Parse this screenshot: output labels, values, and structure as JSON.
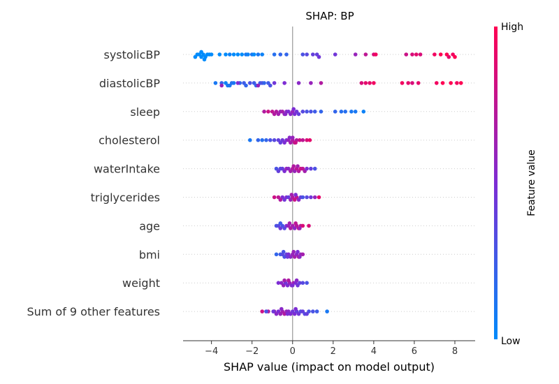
{
  "chart_data": {
    "type": "scatter",
    "subtype": "shap-beeswarm",
    "title": "SHAP: BP",
    "xlabel": "SHAP value (impact on model output)",
    "xlim": [
      -5.4,
      9.0
    ],
    "xticks": [
      -4,
      -2,
      0,
      2,
      4,
      6,
      8
    ],
    "colorbar": {
      "label": "Feature value",
      "high_label": "High",
      "low_label": "Low",
      "low_color": "#008bfb",
      "high_color": "#ff0052"
    },
    "features": [
      {
        "name": "systolicBP",
        "points": [
          [
            -4.6,
            0.0
          ],
          [
            -4.4,
            0.0
          ],
          [
            -4.2,
            0.0
          ],
          [
            -4.5,
            0.0
          ],
          [
            -4.3,
            0.0
          ],
          [
            -4.7,
            0.0
          ],
          [
            -4.1,
            0.0
          ],
          [
            -4.0,
            0.0
          ],
          [
            -4.8,
            0.0
          ],
          [
            -4.5,
            0.0
          ],
          [
            -4.35,
            0.0
          ],
          [
            -3.6,
            0.0
          ],
          [
            -3.3,
            0.0
          ],
          [
            -3.1,
            0.05
          ],
          [
            -2.9,
            0.0
          ],
          [
            -2.7,
            0.0
          ],
          [
            -2.5,
            0.0
          ],
          [
            -2.3,
            0.1
          ],
          [
            -2.2,
            0.05
          ],
          [
            -2.0,
            0.1
          ],
          [
            -1.9,
            0.0
          ],
          [
            -1.7,
            0.1
          ],
          [
            -1.5,
            0.05
          ],
          [
            -0.9,
            0.15
          ],
          [
            -0.6,
            0.2
          ],
          [
            -0.3,
            0.2
          ],
          [
            0.5,
            0.3
          ],
          [
            0.7,
            0.35
          ],
          [
            1.0,
            0.4
          ],
          [
            1.2,
            0.4
          ],
          [
            1.3,
            0.45
          ],
          [
            2.1,
            0.45
          ],
          [
            3.1,
            0.6
          ],
          [
            3.6,
            0.75
          ],
          [
            4.0,
            0.85
          ],
          [
            4.1,
            0.95
          ],
          [
            5.6,
            0.8
          ],
          [
            5.9,
            0.85
          ],
          [
            6.1,
            0.9
          ],
          [
            6.3,
            0.85
          ],
          [
            7.0,
            0.95
          ],
          [
            7.3,
            1.0
          ],
          [
            7.6,
            1.0
          ],
          [
            7.9,
            0.95
          ],
          [
            8.0,
            1.0
          ],
          [
            7.7,
            0.9
          ]
        ]
      },
      {
        "name": "diastolicBP",
        "points": [
          [
            -3.8,
            0.1
          ],
          [
            -3.5,
            0.2
          ],
          [
            -3.3,
            0.05
          ],
          [
            -3.2,
            0.1
          ],
          [
            -3.0,
            0.15
          ],
          [
            -3.1,
            0.1
          ],
          [
            -2.9,
            0.1
          ],
          [
            -2.6,
            0.2
          ],
          [
            -2.4,
            0.25
          ],
          [
            -2.3,
            0.2
          ],
          [
            -2.1,
            0.3
          ],
          [
            -1.9,
            0.25
          ],
          [
            -1.8,
            0.2
          ],
          [
            -1.6,
            0.25
          ],
          [
            -1.5,
            0.3
          ],
          [
            -1.4,
            0.2
          ],
          [
            -1.2,
            0.25
          ],
          [
            -1.1,
            0.3
          ],
          [
            -3.5,
            0.6
          ],
          [
            -2.7,
            0.5
          ],
          [
            -1.7,
            0.6
          ],
          [
            -0.9,
            0.45
          ],
          [
            -0.4,
            0.5
          ],
          [
            0.3,
            0.55
          ],
          [
            0.9,
            0.6
          ],
          [
            1.4,
            0.7
          ],
          [
            3.4,
            0.85
          ],
          [
            3.6,
            0.9
          ],
          [
            3.8,
            0.9
          ],
          [
            4.0,
            0.95
          ],
          [
            5.4,
            0.95
          ],
          [
            5.7,
            0.9
          ],
          [
            5.9,
            0.85
          ],
          [
            6.2,
            0.9
          ],
          [
            7.1,
            0.95
          ],
          [
            7.4,
            1.0
          ],
          [
            7.8,
            1.0
          ],
          [
            8.1,
            0.95
          ],
          [
            8.3,
            1.0
          ]
        ]
      },
      {
        "name": "sleep",
        "points": [
          [
            -1.4,
            0.7
          ],
          [
            -1.2,
            0.8
          ],
          [
            -1.0,
            0.75
          ],
          [
            -0.8,
            0.7
          ],
          [
            -0.6,
            0.6
          ],
          [
            -0.5,
            0.65
          ],
          [
            -0.4,
            0.6
          ],
          [
            -0.3,
            0.55
          ],
          [
            -0.2,
            0.5
          ],
          [
            -0.1,
            0.55
          ],
          [
            0.0,
            0.6
          ],
          [
            0.1,
            0.5
          ],
          [
            0.2,
            0.45
          ],
          [
            0.3,
            0.4
          ],
          [
            0.5,
            0.35
          ],
          [
            0.7,
            0.3
          ],
          [
            0.9,
            0.3
          ],
          [
            1.1,
            0.25
          ],
          [
            1.4,
            0.2
          ],
          [
            2.1,
            0.2
          ],
          [
            2.4,
            0.15
          ],
          [
            2.6,
            0.15
          ],
          [
            2.9,
            0.1
          ],
          [
            3.1,
            0.1
          ],
          [
            3.5,
            0.05
          ],
          [
            -0.7,
            0.65
          ],
          [
            -0.9,
            0.7
          ],
          [
            -0.35,
            0.55
          ],
          [
            0.05,
            0.5
          ]
        ]
      },
      {
        "name": "cholesterol",
        "points": [
          [
            -2.1,
            0.1
          ],
          [
            -1.7,
            0.2
          ],
          [
            -1.5,
            0.15
          ],
          [
            -1.3,
            0.2
          ],
          [
            -1.1,
            0.3
          ],
          [
            -0.9,
            0.35
          ],
          [
            -0.7,
            0.4
          ],
          [
            -0.5,
            0.45
          ],
          [
            -0.3,
            0.5
          ],
          [
            -0.2,
            0.6
          ],
          [
            -0.1,
            0.65
          ],
          [
            0.0,
            0.7
          ],
          [
            0.1,
            0.75
          ],
          [
            0.2,
            0.7
          ],
          [
            0.35,
            0.8
          ],
          [
            0.5,
            0.75
          ],
          [
            0.7,
            0.85
          ],
          [
            0.85,
            0.9
          ],
          [
            -0.6,
            0.4
          ],
          [
            -0.4,
            0.5
          ],
          [
            0.0,
            0.6
          ],
          [
            0.15,
            0.8
          ],
          [
            -0.15,
            0.55
          ]
        ]
      },
      {
        "name": "waterIntake",
        "points": [
          [
            -0.8,
            0.3
          ],
          [
            -0.6,
            0.35
          ],
          [
            -0.5,
            0.4
          ],
          [
            -0.4,
            0.5
          ],
          [
            -0.3,
            0.6
          ],
          [
            -0.2,
            0.55
          ],
          [
            -0.1,
            0.65
          ],
          [
            0.0,
            0.7
          ],
          [
            0.1,
            0.6
          ],
          [
            0.2,
            0.75
          ],
          [
            0.3,
            0.7
          ],
          [
            0.4,
            0.8
          ],
          [
            0.5,
            0.75
          ],
          [
            0.6,
            0.65
          ],
          [
            0.7,
            0.5
          ],
          [
            0.9,
            0.4
          ],
          [
            1.1,
            0.3
          ],
          [
            -0.7,
            0.4
          ],
          [
            0.05,
            0.7
          ],
          [
            0.25,
            0.65
          ]
        ]
      },
      {
        "name": "triglycerides",
        "points": [
          [
            -0.9,
            0.8
          ],
          [
            -0.7,
            0.75
          ],
          [
            -0.5,
            0.5
          ],
          [
            -0.4,
            0.45
          ],
          [
            -0.3,
            0.5
          ],
          [
            -0.2,
            0.4
          ],
          [
            -0.1,
            0.6
          ],
          [
            0.0,
            0.7
          ],
          [
            0.1,
            0.8
          ],
          [
            0.2,
            0.75
          ],
          [
            0.3,
            0.55
          ],
          [
            0.4,
            0.4
          ],
          [
            0.5,
            0.3
          ],
          [
            0.7,
            0.35
          ],
          [
            0.9,
            0.45
          ],
          [
            1.1,
            0.6
          ],
          [
            1.3,
            0.9
          ],
          [
            -0.6,
            0.7
          ],
          [
            -0.05,
            0.65
          ],
          [
            0.15,
            0.5
          ]
        ]
      },
      {
        "name": "age",
        "points": [
          [
            -0.8,
            0.3
          ],
          [
            -0.7,
            0.35
          ],
          [
            -0.6,
            0.45
          ],
          [
            -0.5,
            0.3
          ],
          [
            -0.4,
            0.35
          ],
          [
            -0.3,
            0.5
          ],
          [
            -0.2,
            0.6
          ],
          [
            -0.1,
            0.7
          ],
          [
            0.0,
            0.65
          ],
          [
            0.1,
            0.55
          ],
          [
            0.2,
            0.7
          ],
          [
            0.3,
            0.8
          ],
          [
            0.4,
            0.75
          ],
          [
            0.5,
            0.85
          ],
          [
            0.8,
            0.85
          ],
          [
            -0.6,
            0.25
          ],
          [
            0.15,
            0.75
          ],
          [
            -0.15,
            0.65
          ],
          [
            0.35,
            0.6
          ]
        ]
      },
      {
        "name": "bmi",
        "points": [
          [
            -0.8,
            0.2
          ],
          [
            -0.6,
            0.25
          ],
          [
            -0.5,
            0.35
          ],
          [
            -0.4,
            0.3
          ],
          [
            -0.3,
            0.4
          ],
          [
            -0.2,
            0.5
          ],
          [
            -0.1,
            0.55
          ],
          [
            0.0,
            0.6
          ],
          [
            0.1,
            0.65
          ],
          [
            0.2,
            0.55
          ],
          [
            0.3,
            0.7
          ],
          [
            0.4,
            0.6
          ],
          [
            0.5,
            0.65
          ],
          [
            -0.45,
            0.3
          ],
          [
            0.05,
            0.6
          ],
          [
            0.25,
            0.5
          ],
          [
            -0.25,
            0.45
          ],
          [
            0.35,
            0.55
          ]
        ]
      },
      {
        "name": "weight",
        "points": [
          [
            -0.7,
            0.5
          ],
          [
            -0.55,
            0.55
          ],
          [
            -0.45,
            0.6
          ],
          [
            -0.35,
            0.45
          ],
          [
            -0.25,
            0.5
          ],
          [
            -0.15,
            0.6
          ],
          [
            -0.05,
            0.55
          ],
          [
            0.05,
            0.65
          ],
          [
            0.15,
            0.5
          ],
          [
            0.25,
            0.45
          ],
          [
            0.35,
            0.4
          ],
          [
            0.5,
            0.35
          ],
          [
            0.7,
            0.3
          ],
          [
            -0.4,
            0.65
          ],
          [
            0.0,
            0.5
          ],
          [
            0.2,
            0.55
          ],
          [
            -0.2,
            0.7
          ]
        ]
      },
      {
        "name": "Sum of 9 other features",
        "points": [
          [
            -1.5,
            0.8
          ],
          [
            -1.2,
            0.7
          ],
          [
            -0.9,
            0.6
          ],
          [
            -0.8,
            0.55
          ],
          [
            -0.7,
            0.5
          ],
          [
            -0.6,
            0.6
          ],
          [
            -0.5,
            0.65
          ],
          [
            -0.4,
            0.7
          ],
          [
            -0.3,
            0.6
          ],
          [
            -0.2,
            0.55
          ],
          [
            -0.1,
            0.5
          ],
          [
            0.0,
            0.45
          ],
          [
            0.1,
            0.5
          ],
          [
            0.2,
            0.4
          ],
          [
            0.3,
            0.45
          ],
          [
            0.4,
            0.35
          ],
          [
            0.5,
            0.4
          ],
          [
            0.6,
            0.35
          ],
          [
            0.8,
            0.3
          ],
          [
            1.0,
            0.3
          ],
          [
            1.2,
            0.25
          ],
          [
            1.7,
            0.1
          ],
          [
            -1.3,
            0.3
          ],
          [
            -0.95,
            0.45
          ],
          [
            -0.25,
            0.5
          ],
          [
            0.15,
            0.5
          ],
          [
            0.7,
            0.4
          ],
          [
            -0.55,
            0.55
          ]
        ]
      }
    ]
  }
}
